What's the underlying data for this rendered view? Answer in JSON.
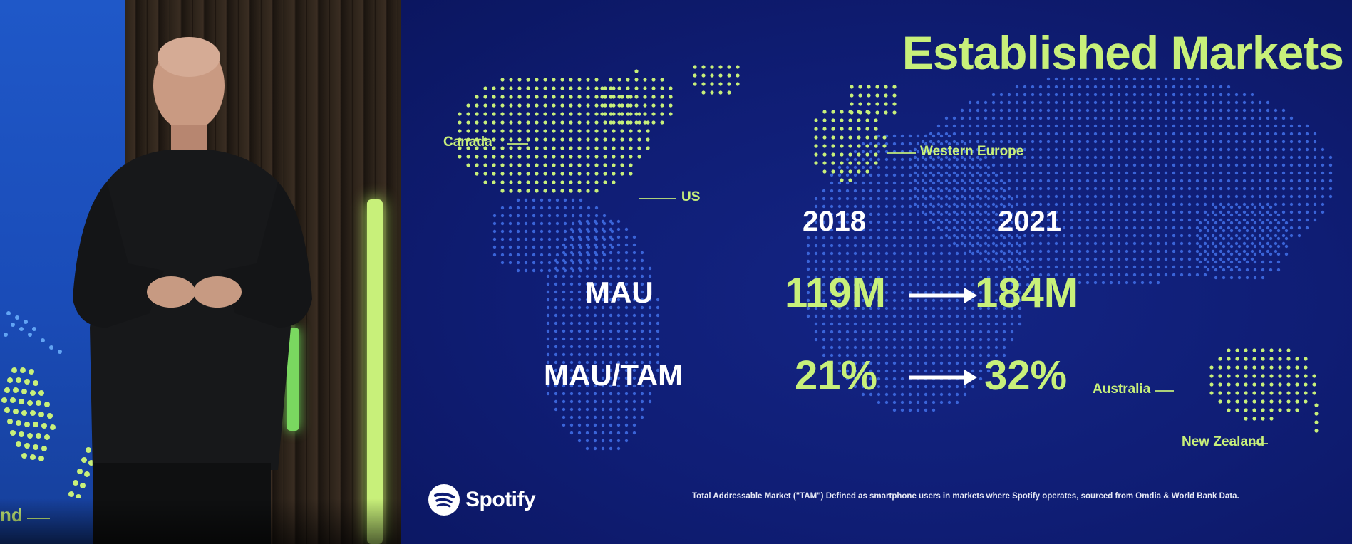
{
  "slide": {
    "title": "Established Markets",
    "regions": {
      "canada": "Canada",
      "us": "US",
      "western_europe": "Western Europe",
      "australia": "Australia",
      "new_zealand": "New Zealand"
    },
    "years": {
      "from": "2018",
      "to": "2021"
    },
    "metrics": [
      {
        "label": "MAU",
        "from": "119M",
        "to": "184M"
      },
      {
        "label": "MAU/TAM",
        "from": "21%",
        "to": "32%"
      }
    ],
    "brand": "Spotify",
    "footnote": "Total Addressable Market (\"TAM\") Defined as smartphone users in markets where Spotify operates, sourced from Omdia & World  Bank Data.",
    "colors": {
      "background": "#0f1d74",
      "accent": "#c8f07a",
      "dots": "#3a64d8"
    }
  },
  "left_screen": {
    "label_fragment": "nd"
  },
  "icons": [
    "spotify-logo-icon",
    "arrow-right-icon"
  ]
}
